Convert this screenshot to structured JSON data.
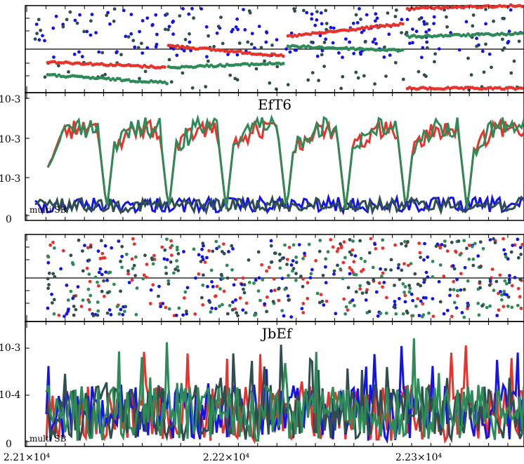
{
  "colors": {
    "red": "#e8322c",
    "blue": "#1414e6",
    "green": "#2e8b57",
    "dark": "#2f4f4f",
    "axis": "#000000",
    "background": "#ffffff"
  },
  "panels": [
    {
      "title": "EfT6",
      "bottom_label": "multi SB",
      "y_tick_labels": [
        "10-3",
        "10-3",
        "10-3",
        "0"
      ]
    },
    {
      "title": "JbEf",
      "bottom_label": "multi SB",
      "y_tick_labels": [
        "10-3",
        "10-4",
        "0"
      ]
    }
  ],
  "x_tick_labels": [
    "2.21×10⁴",
    "2.22×10⁴",
    "2.23×10⁴"
  ],
  "chart_data": [
    {
      "type": "scatter",
      "panel": "EfT6 phase",
      "xlim": [
        22100,
        22350
      ],
      "series": [
        {
          "color": "blue",
          "pattern": "scattered, mostly upper half"
        },
        {
          "color": "red",
          "pattern": "offset bands drifting upward, wrap to bottom near 2.23e4"
        },
        {
          "color": "green",
          "pattern": "offset bands below red"
        },
        {
          "color": "dark",
          "pattern": "scattered, wide spread"
        }
      ]
    },
    {
      "type": "line",
      "panel": "EfT6",
      "xlim": [
        22100,
        22350
      ],
      "x_ticks": [
        22100,
        22200,
        22300
      ],
      "series": [
        {
          "color": "red",
          "level": 0.72,
          "dips_at": [
            22120,
            22155,
            22200,
            22255,
            22310,
            22360
          ]
        },
        {
          "color": "green",
          "level": 0.74,
          "dips_at": [
            22120,
            22155,
            22200,
            22255,
            22310,
            22360
          ]
        },
        {
          "color": "blue",
          "level": 0.06
        },
        {
          "color": "dark",
          "level": 0.06
        }
      ]
    },
    {
      "type": "scatter",
      "panel": "JbEf phase",
      "xlim": [
        22100,
        22350
      ],
      "series": [
        {
          "color": "red",
          "pattern": "uniform random"
        },
        {
          "color": "blue",
          "pattern": "uniform random"
        },
        {
          "color": "green",
          "pattern": "uniform random"
        },
        {
          "color": "dark",
          "pattern": "uniform random"
        }
      ]
    },
    {
      "type": "line",
      "panel": "JbEf",
      "xlim": [
        22100,
        22350
      ],
      "x_ticks": [
        22100,
        22200,
        22300
      ],
      "series": [
        {
          "color": "blue",
          "level": 0.3
        },
        {
          "color": "red",
          "level": 0.3
        },
        {
          "color": "green",
          "level": 0.3
        },
        {
          "color": "dark",
          "level": 0.3
        }
      ]
    }
  ]
}
